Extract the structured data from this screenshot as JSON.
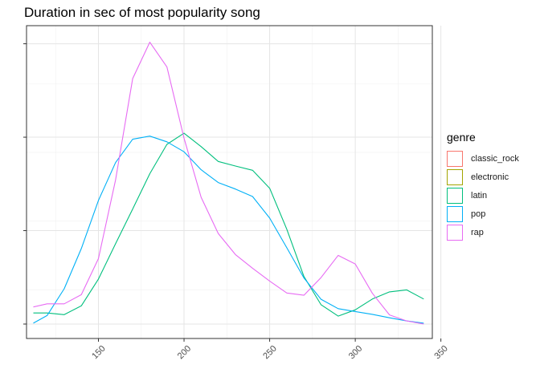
{
  "chart_data": {
    "type": "line",
    "title": "Duration in sec of most popularity song",
    "xlabel": "",
    "ylabel": "",
    "xlim": [
      108,
      345
    ],
    "ylim": [
      0,
      1.0
    ],
    "x_ticks": [
      "150",
      "200",
      "250",
      "300",
      "350"
    ],
    "grid": true,
    "legend": {
      "title": "genre",
      "position": "right"
    },
    "series": [
      {
        "name": "classic_rock",
        "color": "#F8766D",
        "points": []
      },
      {
        "name": "electronic",
        "color": "#A3A500",
        "points": []
      },
      {
        "name": "latin",
        "color": "#00BF7D",
        "points": [
          [
            112,
            0.039
          ],
          [
            120,
            0.039
          ],
          [
            130,
            0.033
          ],
          [
            140,
            0.064
          ],
          [
            150,
            0.158
          ],
          [
            160,
            0.282
          ],
          [
            170,
            0.404
          ],
          [
            180,
            0.528
          ],
          [
            190,
            0.631
          ],
          [
            200,
            0.67
          ],
          [
            210,
            0.623
          ],
          [
            220,
            0.571
          ],
          [
            230,
            0.555
          ],
          [
            240,
            0.54
          ],
          [
            250,
            0.477
          ],
          [
            260,
            0.333
          ],
          [
            270,
            0.167
          ],
          [
            280,
            0.068
          ],
          [
            290,
            0.028
          ],
          [
            300,
            0.05
          ],
          [
            310,
            0.088
          ],
          [
            320,
            0.113
          ],
          [
            330,
            0.12
          ],
          [
            340,
            0.088
          ]
        ]
      },
      {
        "name": "pop",
        "color": "#00B0F6",
        "points": [
          [
            112,
            0.003
          ],
          [
            120,
            0.03
          ],
          [
            130,
            0.124
          ],
          [
            140,
            0.265
          ],
          [
            150,
            0.434
          ],
          [
            160,
            0.567
          ],
          [
            170,
            0.649
          ],
          [
            180,
            0.66
          ],
          [
            190,
            0.64
          ],
          [
            200,
            0.605
          ],
          [
            210,
            0.542
          ],
          [
            220,
            0.497
          ],
          [
            230,
            0.474
          ],
          [
            240,
            0.448
          ],
          [
            250,
            0.372
          ],
          [
            260,
            0.268
          ],
          [
            270,
            0.162
          ],
          [
            280,
            0.087
          ],
          [
            290,
            0.054
          ],
          [
            300,
            0.044
          ],
          [
            310,
            0.034
          ],
          [
            320,
            0.022
          ],
          [
            330,
            0.011
          ],
          [
            340,
            0.003
          ]
        ]
      },
      {
        "name": "rap",
        "color": "#E76BF3",
        "points": [
          [
            112,
            0.06
          ],
          [
            120,
            0.071
          ],
          [
            130,
            0.071
          ],
          [
            140,
            0.103
          ],
          [
            150,
            0.23
          ],
          [
            160,
            0.506
          ],
          [
            170,
            0.862
          ],
          [
            180,
            0.99
          ],
          [
            190,
            0.903
          ],
          [
            200,
            0.653
          ],
          [
            210,
            0.445
          ],
          [
            220,
            0.318
          ],
          [
            230,
            0.244
          ],
          [
            240,
            0.196
          ],
          [
            250,
            0.151
          ],
          [
            260,
            0.109
          ],
          [
            270,
            0.101
          ],
          [
            280,
            0.163
          ],
          [
            290,
            0.241
          ],
          [
            300,
            0.211
          ],
          [
            310,
            0.108
          ],
          [
            320,
            0.032
          ],
          [
            330,
            0.011
          ],
          [
            340,
            0.0
          ]
        ]
      }
    ]
  }
}
